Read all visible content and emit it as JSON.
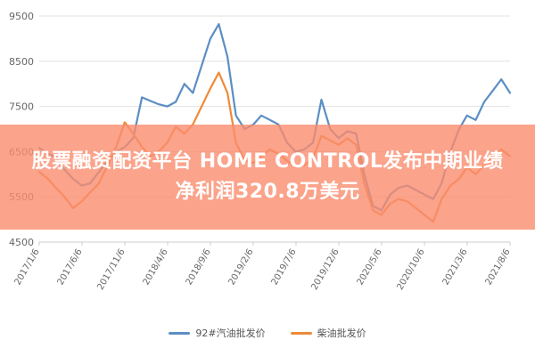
{
  "colors": {
    "series_92": "#5b8ec4",
    "series_diesel": "#ef8a38",
    "banner": "#fa8c6e",
    "banner_text": "#ffffff",
    "grid": "#e2e2e2",
    "axis_text": "#666666"
  },
  "banner": {
    "line1": "股票融资配资平台 HOME CONTROL发布中期业绩",
    "line2": "净利润320.8万美元"
  },
  "chart_data": {
    "type": "line",
    "grid": true,
    "legend_position": "bottom",
    "ylim": [
      4500,
      9500
    ],
    "yticks": [
      4500,
      5500,
      6500,
      7500,
      8500,
      9500
    ],
    "ytick_labels": [
      "4500",
      "5500",
      "6500",
      "7500",
      "8500",
      "9500"
    ],
    "x_range": [
      "2017-01-06",
      "2021-08-06"
    ],
    "xtick_labels": [
      "2017/1/6",
      "2017/6/6",
      "2017/11/6",
      "2018/4/6",
      "2018/9/6",
      "2019/2/6",
      "2019/7/6",
      "2019/12/6",
      "2020/5/6",
      "2020/10/6",
      "2021/3/6",
      "2021/8/6"
    ],
    "series": [
      {
        "name": "92#汽油批发价",
        "points": [
          [
            "2017-01-06",
            6580
          ],
          [
            "2017-02-06",
            6450
          ],
          [
            "2017-03-06",
            6380
          ],
          [
            "2017-04-06",
            6100
          ],
          [
            "2017-05-06",
            5900
          ],
          [
            "2017-06-06",
            5750
          ],
          [
            "2017-07-06",
            5800
          ],
          [
            "2017-08-06",
            6050
          ],
          [
            "2017-09-06",
            6300
          ],
          [
            "2017-10-06",
            6500
          ],
          [
            "2017-11-06",
            6600
          ],
          [
            "2017-12-06",
            6800
          ],
          [
            "2018-01-06",
            7700
          ],
          [
            "2018-02-06",
            7620
          ],
          [
            "2018-03-06",
            7550
          ],
          [
            "2018-04-06",
            7500
          ],
          [
            "2018-05-06",
            7600
          ],
          [
            "2018-06-06",
            8000
          ],
          [
            "2018-07-06",
            7800
          ],
          [
            "2018-08-06",
            8400
          ],
          [
            "2018-09-06",
            9000
          ],
          [
            "2018-10-06",
            9320
          ],
          [
            "2018-11-06",
            8600
          ],
          [
            "2018-12-06",
            7300
          ],
          [
            "2019-01-06",
            7000
          ],
          [
            "2019-02-06",
            7100
          ],
          [
            "2019-03-06",
            7300
          ],
          [
            "2019-04-06",
            7200
          ],
          [
            "2019-05-06",
            7100
          ],
          [
            "2019-06-06",
            6700
          ],
          [
            "2019-07-06",
            6500
          ],
          [
            "2019-08-06",
            6550
          ],
          [
            "2019-09-06",
            6700
          ],
          [
            "2019-10-06",
            7650
          ],
          [
            "2019-11-06",
            7000
          ],
          [
            "2019-12-06",
            6800
          ],
          [
            "2020-01-06",
            6950
          ],
          [
            "2020-02-06",
            6900
          ],
          [
            "2020-03-06",
            6000
          ],
          [
            "2020-04-06",
            5300
          ],
          [
            "2020-05-06",
            5200
          ],
          [
            "2020-06-06",
            5550
          ],
          [
            "2020-07-06",
            5700
          ],
          [
            "2020-08-06",
            5750
          ],
          [
            "2020-09-06",
            5650
          ],
          [
            "2020-10-06",
            5550
          ],
          [
            "2020-11-06",
            5450
          ],
          [
            "2020-12-06",
            5800
          ],
          [
            "2021-01-06",
            6500
          ],
          [
            "2021-02-06",
            7000
          ],
          [
            "2021-03-06",
            7300
          ],
          [
            "2021-04-06",
            7200
          ],
          [
            "2021-05-06",
            7600
          ],
          [
            "2021-06-06",
            7850
          ],
          [
            "2021-07-06",
            8100
          ],
          [
            "2021-08-06",
            7800
          ]
        ]
      },
      {
        "name": "柴油批发价",
        "points": [
          [
            "2017-01-06",
            6050
          ],
          [
            "2017-02-06",
            5900
          ],
          [
            "2017-03-06",
            5700
          ],
          [
            "2017-04-06",
            5500
          ],
          [
            "2017-05-06",
            5250
          ],
          [
            "2017-06-06",
            5400
          ],
          [
            "2017-07-06",
            5600
          ],
          [
            "2017-08-06",
            5800
          ],
          [
            "2017-09-06",
            6200
          ],
          [
            "2017-10-06",
            6600
          ],
          [
            "2017-11-06",
            7150
          ],
          [
            "2017-12-06",
            6900
          ],
          [
            "2018-01-06",
            6600
          ],
          [
            "2018-02-06",
            6400
          ],
          [
            "2018-03-06",
            6500
          ],
          [
            "2018-04-06",
            6700
          ],
          [
            "2018-05-06",
            7050
          ],
          [
            "2018-06-06",
            6900
          ],
          [
            "2018-07-06",
            7100
          ],
          [
            "2018-08-06",
            7500
          ],
          [
            "2018-09-06",
            7900
          ],
          [
            "2018-10-06",
            8250
          ],
          [
            "2018-11-06",
            7800
          ],
          [
            "2018-12-06",
            6700
          ],
          [
            "2019-01-06",
            6300
          ],
          [
            "2019-02-06",
            6250
          ],
          [
            "2019-03-06",
            6400
          ],
          [
            "2019-04-06",
            6550
          ],
          [
            "2019-05-06",
            6450
          ],
          [
            "2019-06-06",
            6300
          ],
          [
            "2019-07-06",
            6150
          ],
          [
            "2019-08-06",
            6200
          ],
          [
            "2019-09-06",
            6350
          ],
          [
            "2019-10-06",
            6850
          ],
          [
            "2019-11-06",
            6750
          ],
          [
            "2019-12-06",
            6650
          ],
          [
            "2020-01-06",
            6800
          ],
          [
            "2020-02-06",
            6650
          ],
          [
            "2020-03-06",
            5800
          ],
          [
            "2020-04-06",
            5200
          ],
          [
            "2020-05-06",
            5100
          ],
          [
            "2020-06-06",
            5350
          ],
          [
            "2020-07-06",
            5450
          ],
          [
            "2020-08-06",
            5400
          ],
          [
            "2020-09-06",
            5250
          ],
          [
            "2020-10-06",
            5100
          ],
          [
            "2020-11-06",
            4950
          ],
          [
            "2020-12-06",
            5450
          ],
          [
            "2021-01-06",
            5750
          ],
          [
            "2021-02-06",
            5900
          ],
          [
            "2021-03-06",
            6150
          ],
          [
            "2021-04-06",
            6000
          ],
          [
            "2021-05-06",
            6200
          ],
          [
            "2021-06-06",
            6400
          ],
          [
            "2021-07-06",
            6550
          ],
          [
            "2021-08-06",
            6400
          ]
        ]
      }
    ]
  }
}
